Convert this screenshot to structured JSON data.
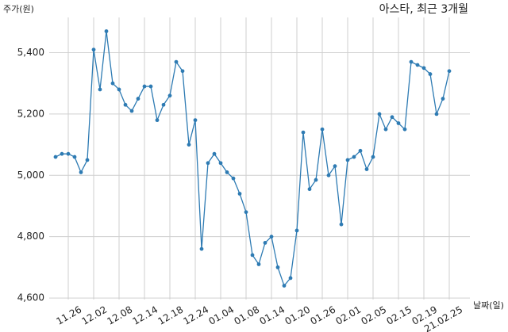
{
  "chart_data": {
    "type": "line",
    "title": "아스타, 최근 3개월",
    "ylabel": "주가(원)",
    "xlabel": "날짜(일)",
    "categories": [
      null,
      null,
      "11.26",
      null,
      null,
      null,
      "12.02",
      null,
      null,
      null,
      "12.08",
      null,
      null,
      null,
      "12.14",
      null,
      null,
      null,
      "12.18",
      null,
      null,
      null,
      "12.24",
      null,
      null,
      null,
      "01.04",
      null,
      null,
      null,
      "01.08",
      null,
      null,
      null,
      "01.14",
      null,
      null,
      null,
      "01.20",
      null,
      null,
      null,
      "01.26",
      null,
      null,
      null,
      "02.01",
      null,
      null,
      null,
      "02.05",
      null,
      null,
      null,
      "02.15",
      null,
      null,
      null,
      "02.19",
      null,
      null,
      null,
      "21.02.25"
    ],
    "series": [
      {
        "name": "주가",
        "color": "#2e7bb3",
        "values": [
          5060,
          5070,
          5070,
          5060,
          5010,
          5050,
          5410,
          5280,
          5470,
          5300,
          5280,
          5230,
          5210,
          5250,
          5290,
          5290,
          5180,
          5230,
          5260,
          5370,
          5340,
          5100,
          5180,
          4760,
          5040,
          5070,
          5040,
          5010,
          4990,
          4940,
          4880,
          4740,
          4710,
          4780,
          4800,
          4700,
          4640,
          4665,
          4820,
          5140,
          4955,
          4985,
          5150,
          5000,
          5030,
          4840,
          5050,
          5060,
          5080,
          5020,
          5060,
          5200,
          5150,
          5190,
          5170,
          5150,
          5370,
          5360,
          5350,
          5330,
          5200,
          5250,
          5340
        ]
      }
    ],
    "ylim": [
      4595,
      5515
    ],
    "yticks": [
      {
        "value": 4600,
        "label": "4,600"
      },
      {
        "value": 4800,
        "label": "4,800"
      },
      {
        "value": 5000,
        "label": "5,000"
      },
      {
        "value": 5200,
        "label": "5,200"
      },
      {
        "value": 5400,
        "label": "5,400"
      }
    ],
    "grid": true
  }
}
